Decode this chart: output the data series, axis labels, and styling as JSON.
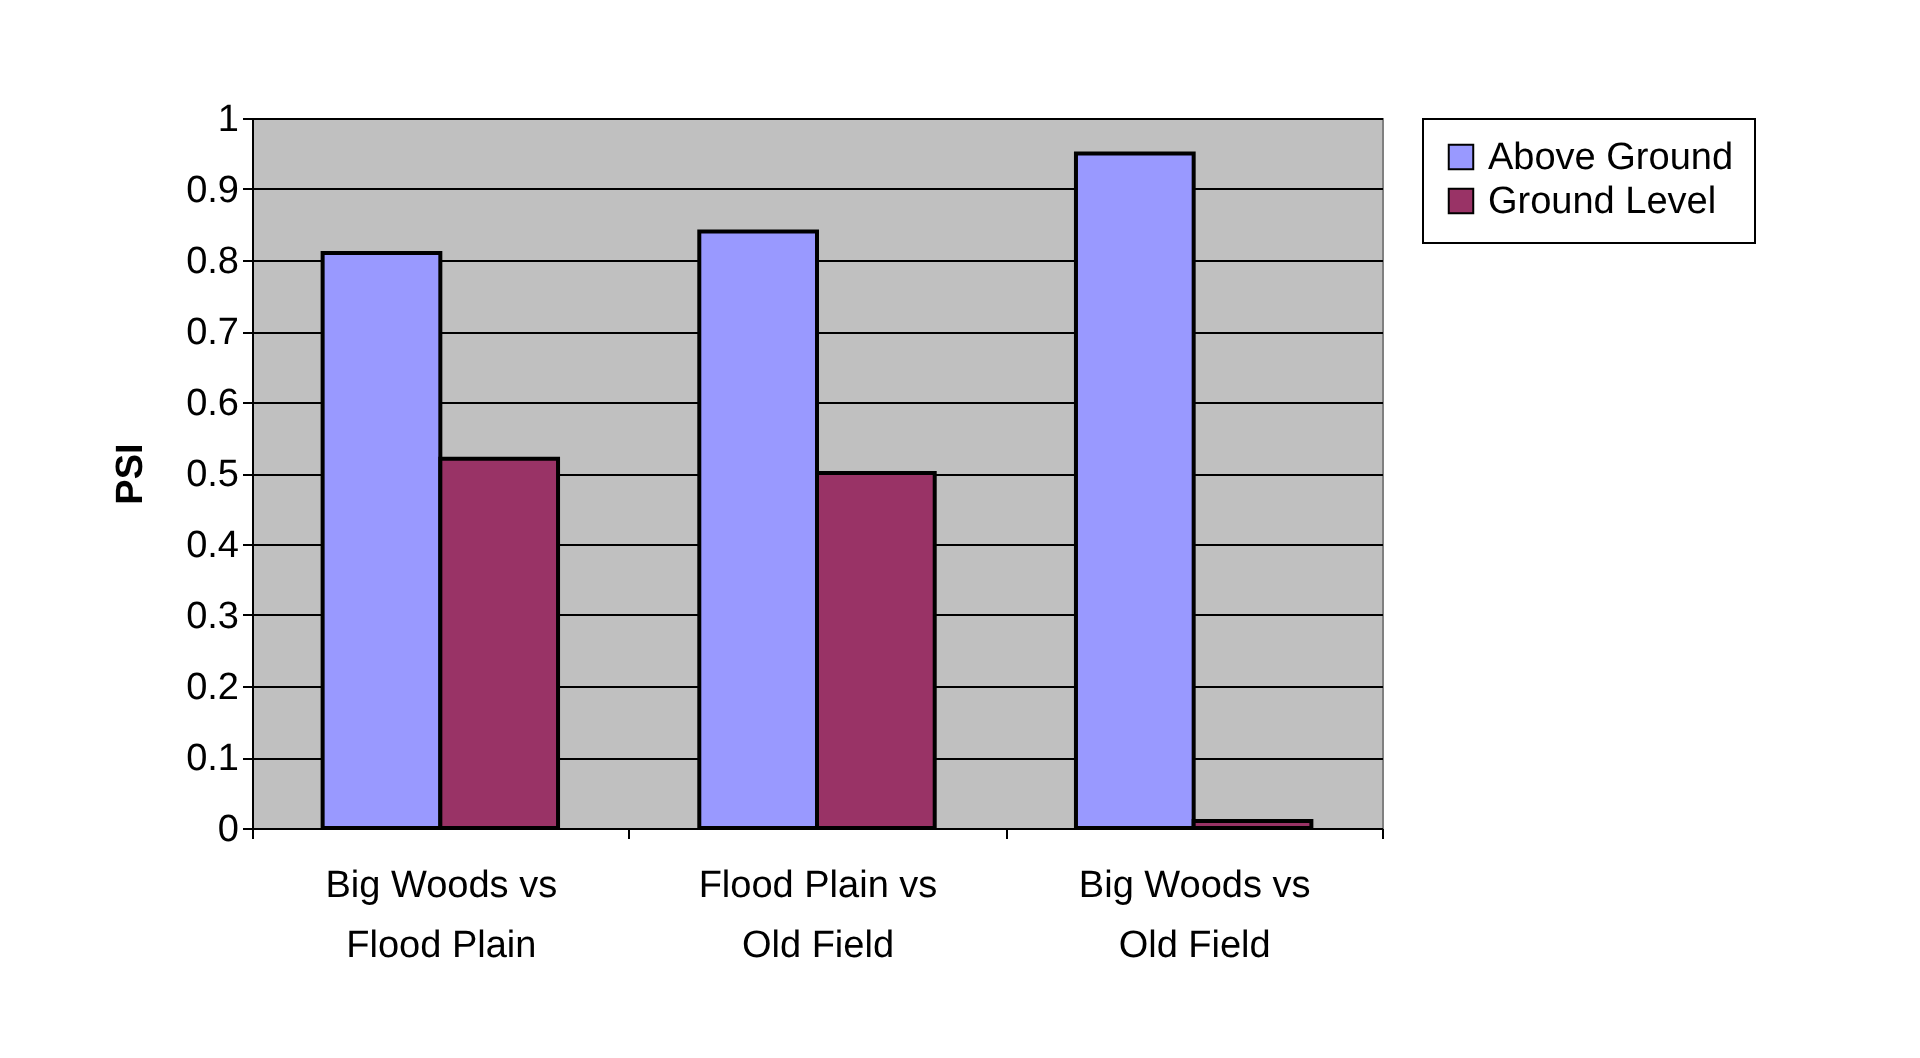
{
  "chart_data": {
    "type": "bar",
    "ylabel": "PSI",
    "categories": [
      "Big Woods vs\nFlood Plain",
      "Flood Plain vs\nOld Field",
      "Big Woods vs\nOld Field"
    ],
    "series": [
      {
        "name": "Above Ground",
        "color": "#9999ff",
        "values": [
          0.81,
          0.84,
          0.95
        ]
      },
      {
        "name": "Ground Level",
        "color": "#993366",
        "values": [
          0.52,
          0.5,
          0.01
        ]
      }
    ],
    "ylim": [
      0,
      1
    ],
    "yticks": [
      0,
      0.1,
      0.2,
      0.3,
      0.4,
      0.5,
      0.6,
      0.7,
      0.8,
      0.9,
      1
    ],
    "grid": "y",
    "legend": "right"
  }
}
